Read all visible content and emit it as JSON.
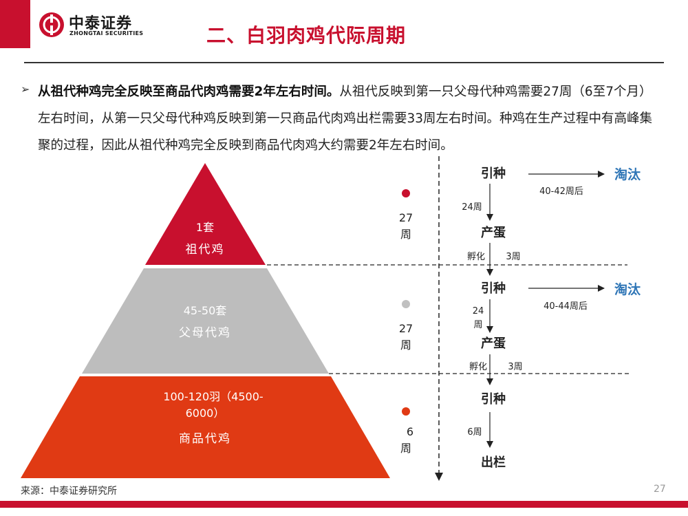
{
  "header": {
    "logo_cn": "中泰证券",
    "logo_en": "ZHONGTAI SECURITIES",
    "title": "二、白羽肉鸡代际周期"
  },
  "paragraph": {
    "bold": "从祖代种鸡完全反映至商品代肉鸡需要2年左右时间。",
    "text": "从祖代反映到第一只父母代种鸡需要27周（6至7个月）左右时间，从第一只父母代种鸡反映到第一只商品代肉鸡出栏需要33周左右时间。种鸡在生产过程中有高峰集聚的过程，因此从祖代种鸡完全反映到商品代肉鸡大约需要2年左右时间。"
  },
  "pyramid": {
    "top": {
      "line1": "1套",
      "line2": "祖代鸡",
      "color": "#c8102e"
    },
    "middle": {
      "line1": "45-50套",
      "line2": "父母代鸡",
      "color": "#bdbdbd"
    },
    "bottom": {
      "line1": "100-120羽（4500-",
      "line1b": "6000）",
      "line2": "商品代鸡",
      "color": "#e03a14"
    }
  },
  "timeline": {
    "seg1": {
      "num": "27",
      "unit": "周",
      "dot_color": "#c8102e"
    },
    "seg2": {
      "num": "27",
      "unit": "周",
      "dot_color": "#c0c0c0"
    },
    "seg3": {
      "num": "6",
      "unit": "周",
      "dot_color": "#e03a14"
    }
  },
  "flow": {
    "yinzhong1": "引种",
    "weeks_a": "24周",
    "chandan1": "产蛋",
    "fuhua1": "孵化",
    "weeks_b": "3周",
    "taotai1": "淘汰",
    "cull1": "40-42周后",
    "yinzhong2": "引种",
    "weeks_c1": "24",
    "weeks_c2": "周",
    "chandan2": "产蛋",
    "fuhua2": "孵化",
    "weeks_d": "3周",
    "taotai2": "淘汰",
    "cull2": "40-44周后",
    "yinzhong3": "引种",
    "weeks_e": "6周",
    "chulan": "出栏",
    "accent": "#2e75b6"
  },
  "footer": {
    "source": "来源：中泰证券研究所",
    "page": "27"
  }
}
